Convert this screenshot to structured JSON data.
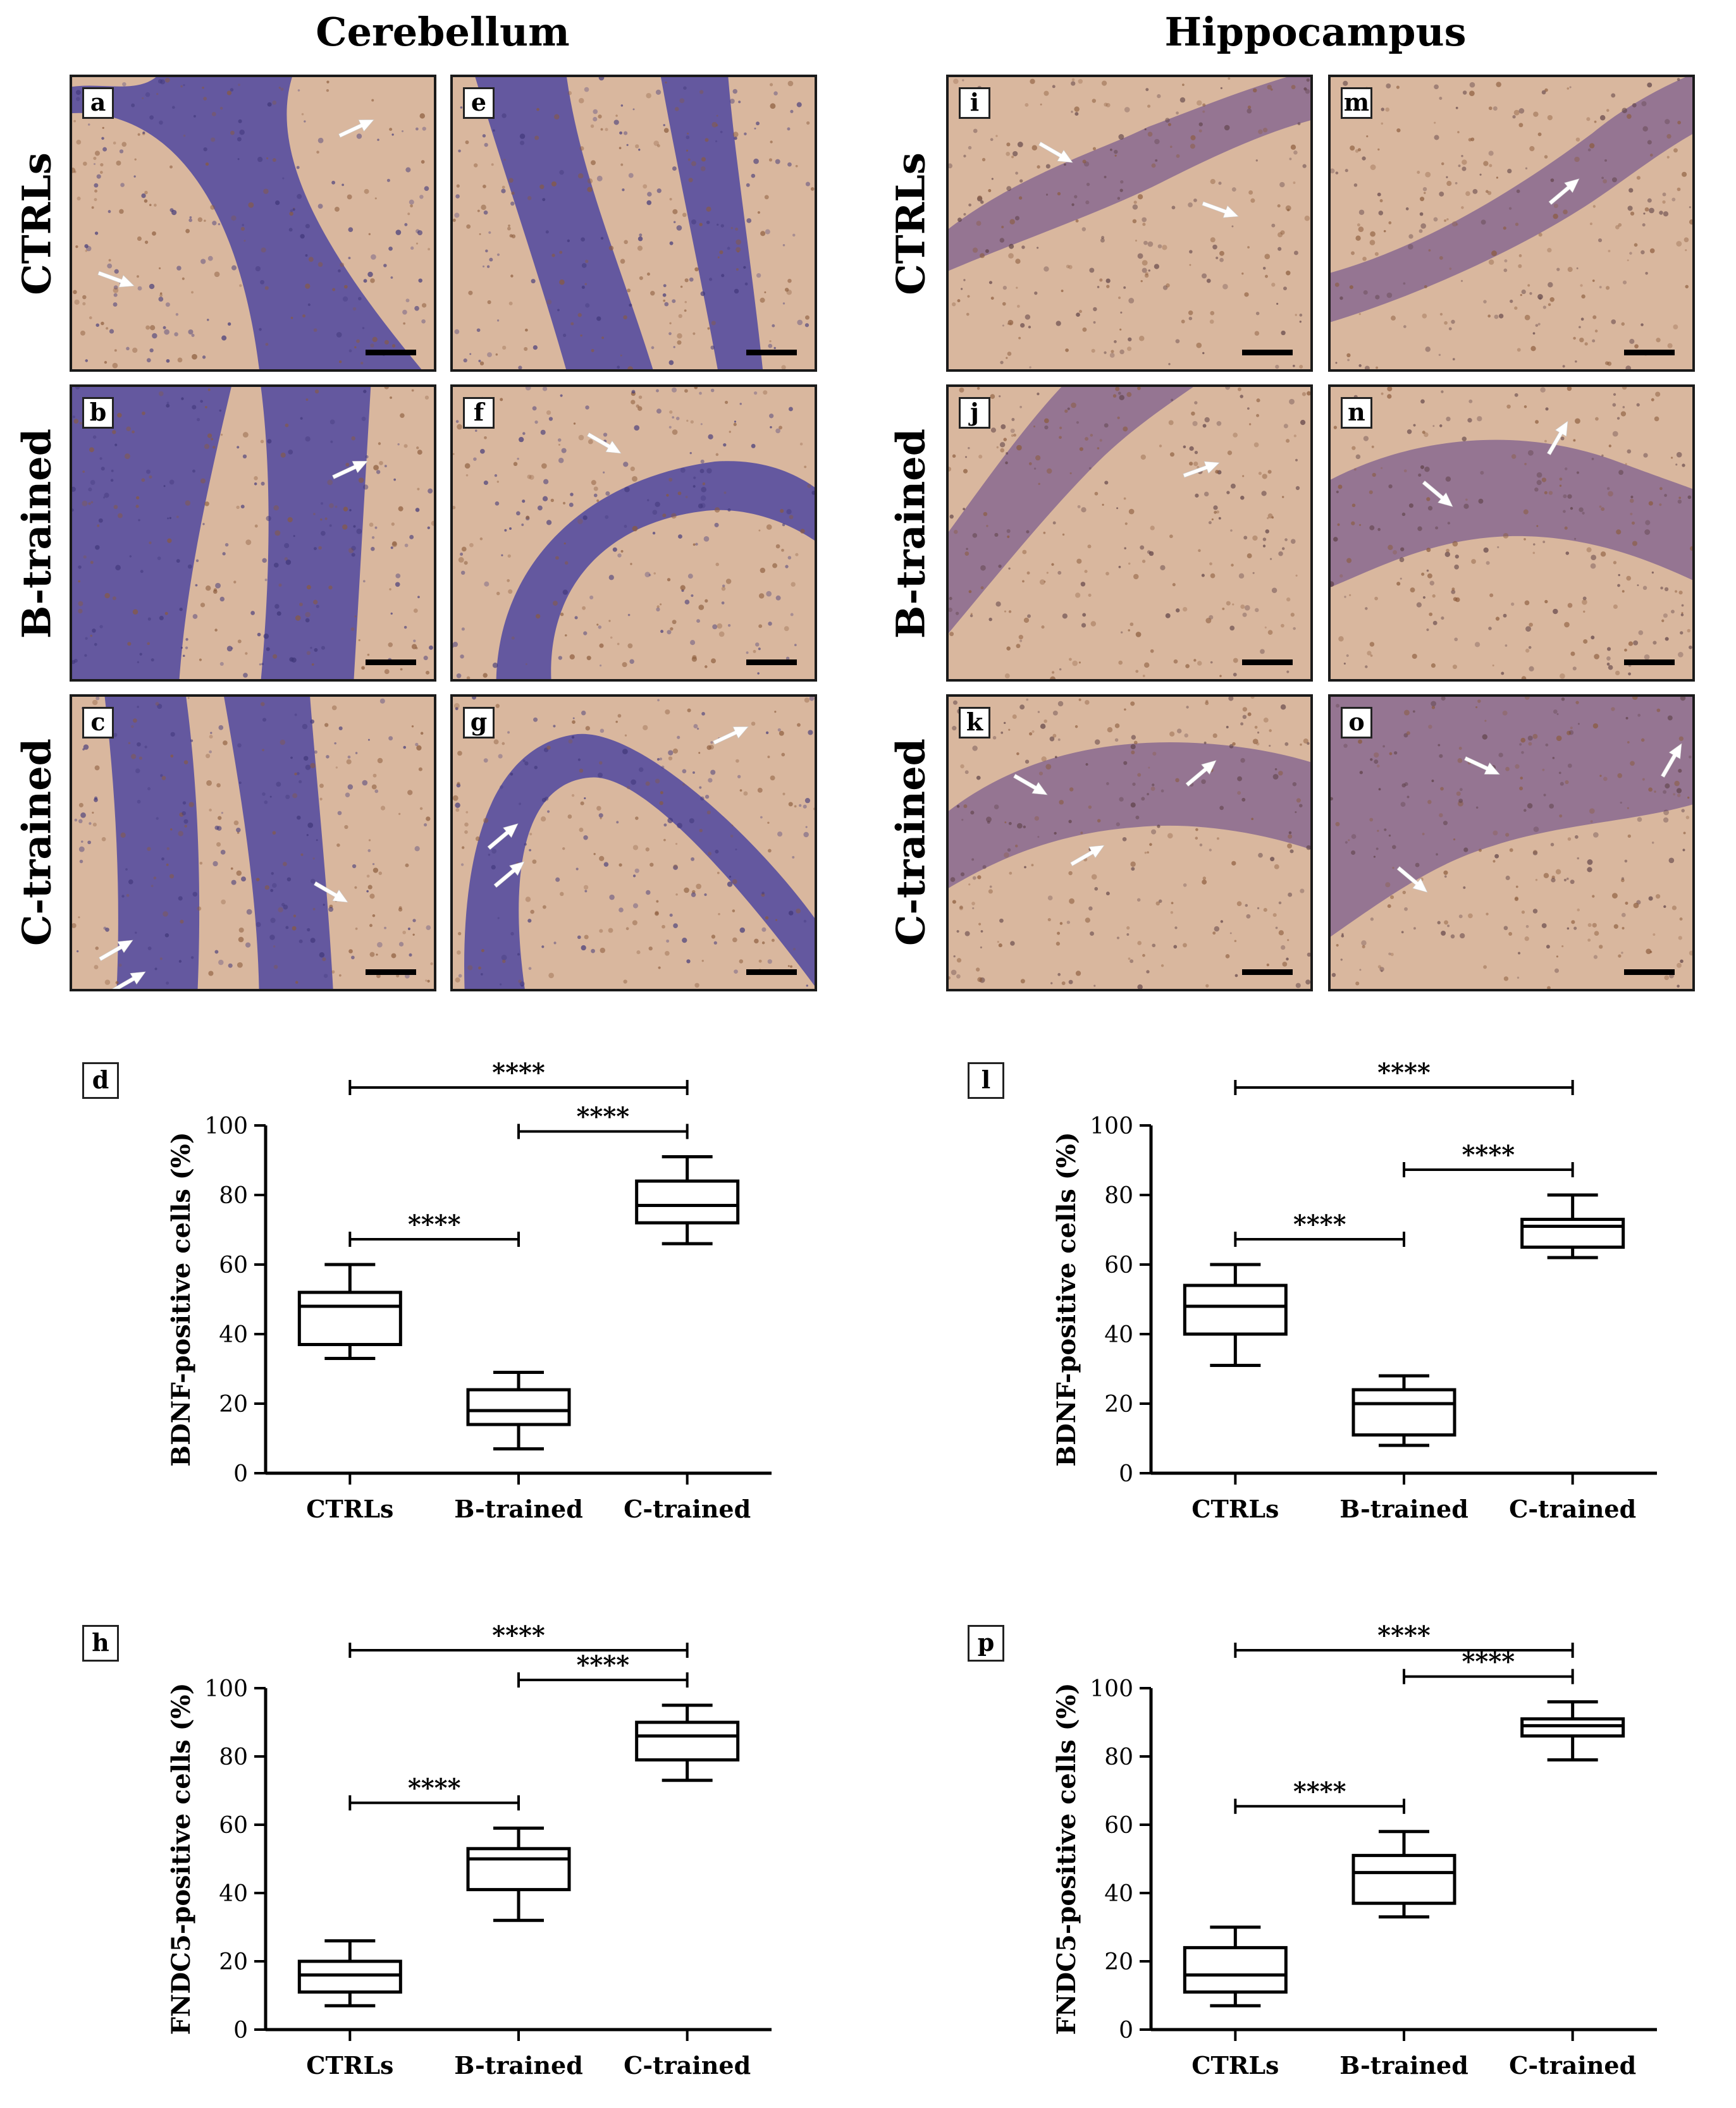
{
  "column_titles": {
    "cerebellum": "Cerebellum",
    "hippocampus": "Hippocampus"
  },
  "row_labels": {
    "ctrls": "CTRLs",
    "btrained": "B-trained",
    "ctrained": "C-trained"
  },
  "micrographs": [
    {
      "letter": "a",
      "tissue": "cerebellum",
      "group": "CTRLs"
    },
    {
      "letter": "e",
      "tissue": "cerebellum",
      "group": "CTRLs"
    },
    {
      "letter": "b",
      "tissue": "cerebellum",
      "group": "B-trained"
    },
    {
      "letter": "f",
      "tissue": "cerebellum",
      "group": "B-trained"
    },
    {
      "letter": "c",
      "tissue": "cerebellum",
      "group": "C-trained"
    },
    {
      "letter": "g",
      "tissue": "cerebellum",
      "group": "C-trained"
    },
    {
      "letter": "i",
      "tissue": "hippocampus",
      "group": "CTRLs"
    },
    {
      "letter": "m",
      "tissue": "hippocampus",
      "group": "CTRLs"
    },
    {
      "letter": "j",
      "tissue": "hippocampus",
      "group": "B-trained"
    },
    {
      "letter": "n",
      "tissue": "hippocampus",
      "group": "B-trained"
    },
    {
      "letter": "k",
      "tissue": "hippocampus",
      "group": "C-trained"
    },
    {
      "letter": "o",
      "tissue": "hippocampus",
      "group": "C-trained"
    }
  ],
  "colors": {
    "stain_blue": "#5a4fa0",
    "stain_brown": "#b07a52",
    "background_tissue": "#d9b79e"
  },
  "chart_data": [
    {
      "panel": "d",
      "type": "box",
      "ylabel": "BDNF-positive cells (%)",
      "categories": [
        "CTRLs",
        "B-trained",
        "C-trained"
      ],
      "yticks": [
        0,
        20,
        40,
        60,
        80,
        100
      ],
      "ylim": [
        0,
        100
      ],
      "boxes": [
        {
          "min": 33,
          "q1": 37,
          "median": 48,
          "q3": 52,
          "max": 60
        },
        {
          "min": 7,
          "q1": 14,
          "median": 18,
          "q3": 24,
          "max": 29
        },
        {
          "min": 66,
          "q1": 72,
          "median": 77,
          "q3": 84,
          "max": 91
        }
      ],
      "brackets": [
        {
          "from": 0,
          "to": 2,
          "label": "****"
        },
        {
          "from": 1,
          "to": 2,
          "label": "****"
        },
        {
          "from": 0,
          "to": 1,
          "label": "****"
        }
      ]
    },
    {
      "panel": "l",
      "type": "box",
      "ylabel": "BDNF-positive cells (%)",
      "categories": [
        "CTRLs",
        "B-trained",
        "C-trained"
      ],
      "yticks": [
        0,
        20,
        40,
        60,
        80,
        100
      ],
      "ylim": [
        0,
        100
      ],
      "boxes": [
        {
          "min": 31,
          "q1": 40,
          "median": 48,
          "q3": 54,
          "max": 60
        },
        {
          "min": 8,
          "q1": 11,
          "median": 20,
          "q3": 24,
          "max": 28
        },
        {
          "min": 62,
          "q1": 65,
          "median": 71,
          "q3": 73,
          "max": 80
        }
      ],
      "brackets": [
        {
          "from": 0,
          "to": 2,
          "label": "****"
        },
        {
          "from": 1,
          "to": 2,
          "label": "****"
        },
        {
          "from": 0,
          "to": 1,
          "label": "****"
        }
      ]
    },
    {
      "panel": "h",
      "type": "box",
      "ylabel": "FNDC5-positive cells (%)",
      "categories": [
        "CTRLs",
        "B-trained",
        "C-trained"
      ],
      "yticks": [
        0,
        20,
        40,
        60,
        80,
        100
      ],
      "ylim": [
        0,
        100
      ],
      "boxes": [
        {
          "min": 7,
          "q1": 11,
          "median": 16,
          "q3": 20,
          "max": 26
        },
        {
          "min": 32,
          "q1": 41,
          "median": 50,
          "q3": 53,
          "max": 59
        },
        {
          "min": 73,
          "q1": 79,
          "median": 86,
          "q3": 90,
          "max": 95
        }
      ],
      "brackets": [
        {
          "from": 0,
          "to": 2,
          "label": "****"
        },
        {
          "from": 1,
          "to": 2,
          "label": "****"
        },
        {
          "from": 0,
          "to": 1,
          "label": "****"
        }
      ]
    },
    {
      "panel": "p",
      "type": "box",
      "ylabel": "FNDC5-positive cells (%)",
      "categories": [
        "CTRLs",
        "B-trained",
        "C-trained"
      ],
      "yticks": [
        0,
        20,
        40,
        60,
        80,
        100
      ],
      "ylim": [
        0,
        100
      ],
      "boxes": [
        {
          "min": 7,
          "q1": 11,
          "median": 16,
          "q3": 24,
          "max": 30
        },
        {
          "min": 33,
          "q1": 37,
          "median": 46,
          "q3": 51,
          "max": 58
        },
        {
          "min": 79,
          "q1": 86,
          "median": 89,
          "q3": 91,
          "max": 96
        }
      ],
      "brackets": [
        {
          "from": 0,
          "to": 2,
          "label": "****"
        },
        {
          "from": 1,
          "to": 2,
          "label": "****"
        },
        {
          "from": 0,
          "to": 1,
          "label": "****"
        }
      ]
    }
  ]
}
